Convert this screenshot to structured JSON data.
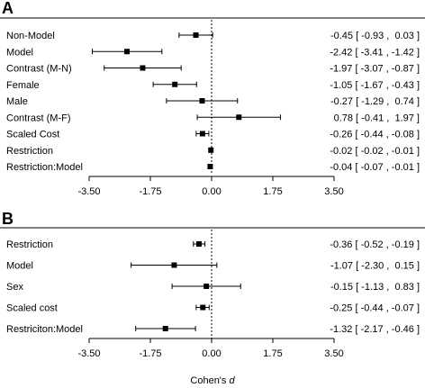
{
  "chart_data": [
    {
      "panel": "A",
      "type": "forest",
      "xlim": [
        -3.5,
        3.5
      ],
      "xticks": [
        "-3.50",
        "-1.75",
        "0.00",
        "1.75",
        "3.50"
      ],
      "xtick_values": [
        -3.5,
        -1.75,
        0,
        1.75,
        3.5
      ],
      "reference_line": 0,
      "rows": [
        {
          "label": "Non-Model",
          "est": -0.45,
          "lo": -0.93,
          "hi": 0.03,
          "ci_text": "-0.45 [ -0.93 ,  0.03 ]"
        },
        {
          "label": "Model",
          "est": -2.42,
          "lo": -3.41,
          "hi": -1.42,
          "ci_text": "-2.42 [ -3.41 , -1.42 ]"
        },
        {
          "label": "Contrast (M-N)",
          "est": -1.97,
          "lo": -3.07,
          "hi": -0.87,
          "ci_text": "-1.97 [ -3.07 , -0.87 ]"
        },
        {
          "label": "Female",
          "est": -1.05,
          "lo": -1.67,
          "hi": -0.43,
          "ci_text": "-1.05 [ -1.67 , -0.43 ]"
        },
        {
          "label": "Male",
          "est": -0.27,
          "lo": -1.29,
          "hi": 0.74,
          "ci_text": "-0.27 [ -1.29 ,  0.74 ]"
        },
        {
          "label": "Contrast (M-F)",
          "est": 0.78,
          "lo": -0.41,
          "hi": 1.97,
          "ci_text": "0.78 [ -0.41 ,  1.97 ]"
        },
        {
          "label": "Scaled Cost",
          "est": -0.26,
          "lo": -0.44,
          "hi": -0.08,
          "ci_text": "-0.26 [ -0.44 , -0.08 ]"
        },
        {
          "label": "Restriction",
          "est": -0.02,
          "lo": -0.02,
          "hi": -0.01,
          "ci_text": "-0.02 [ -0.02 , -0.01 ]"
        },
        {
          "label": "Restriction:Model",
          "est": -0.04,
          "lo": -0.07,
          "hi": -0.01,
          "ci_text": "-0.04 [ -0.07 , -0.01 ]"
        }
      ]
    },
    {
      "panel": "B",
      "type": "forest",
      "xlim": [
        -3.5,
        3.5
      ],
      "xticks": [
        "-3.50",
        "-1.75",
        "0.00",
        "1.75",
        "3.50"
      ],
      "xtick_values": [
        -3.5,
        -1.75,
        0,
        1.75,
        3.5
      ],
      "reference_line": 0,
      "xlabel": "Cohen's d",
      "rows": [
        {
          "label": "Restriction",
          "est": -0.36,
          "lo": -0.52,
          "hi": -0.19,
          "ci_text": "-0.36 [ -0.52 , -0.19 ]"
        },
        {
          "label": "Model",
          "est": -1.07,
          "lo": -2.3,
          "hi": 0.15,
          "ci_text": "-1.07 [ -2.30 ,  0.15 ]"
        },
        {
          "label": "Sex",
          "est": -0.15,
          "lo": -1.13,
          "hi": 0.83,
          "ci_text": "-0.15 [ -1.13 ,  0.83 ]"
        },
        {
          "label": "Scaled cost",
          "est": -0.25,
          "lo": -0.44,
          "hi": -0.07,
          "ci_text": "-0.25 [ -0.44 , -0.07 ]"
        },
        {
          "label": "Restriciton:Model",
          "est": -1.32,
          "lo": -2.17,
          "hi": -0.46,
          "ci_text": "-1.32 [ -2.17 , -0.46 ]"
        }
      ]
    }
  ],
  "xlabel_prefix": "Cohen's ",
  "xlabel_italic": "d"
}
